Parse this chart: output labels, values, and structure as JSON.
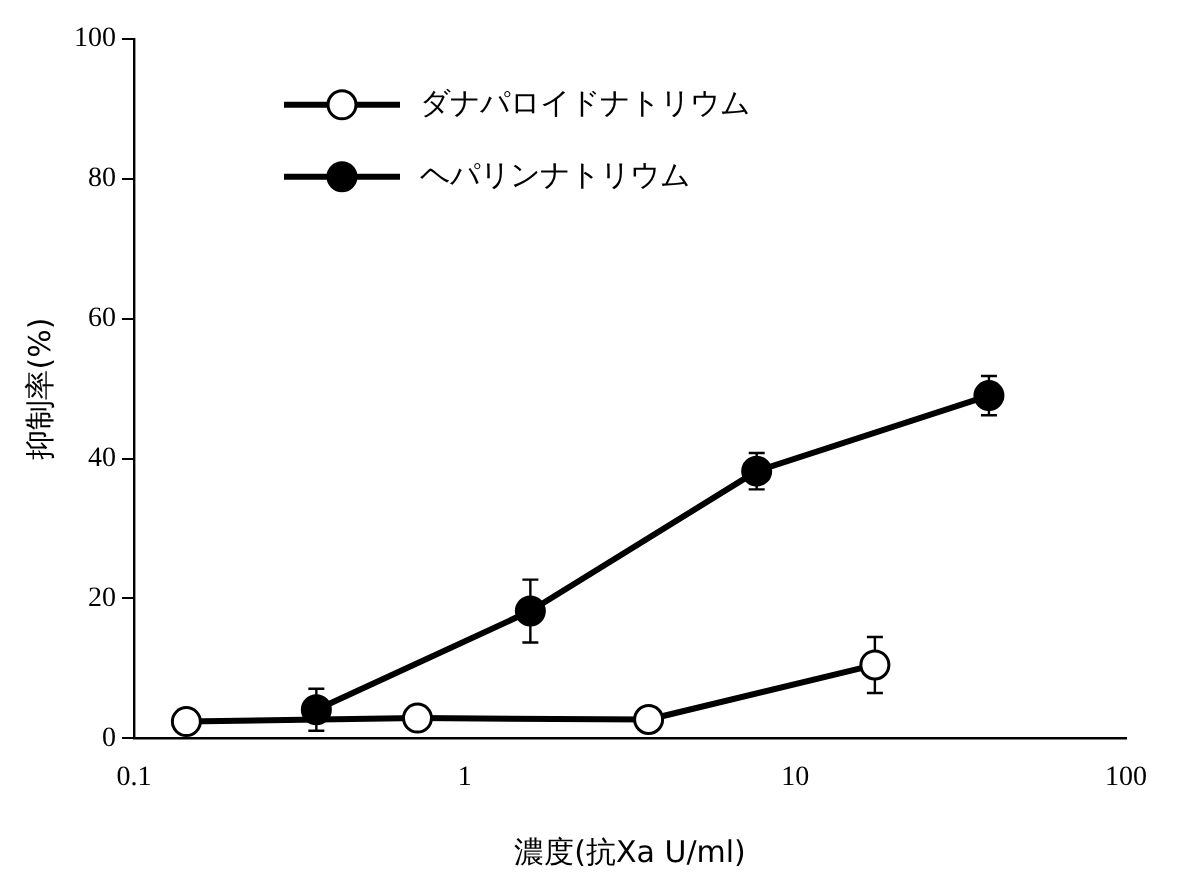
{
  "chart_data": {
    "type": "line",
    "xlabel": "濃度(抗Xa U/ml)",
    "ylabel": "抑制率(%)",
    "log": "x",
    "xlim": [
      0.1,
      100
    ],
    "xticks": [
      0.1,
      1,
      10,
      100
    ],
    "ylim": [
      0,
      100
    ],
    "yticks": [
      0,
      20,
      40,
      60,
      80,
      100
    ],
    "grid": false,
    "legend": "top left",
    "series": [
      {
        "name": "ダナパロイドナトリウム",
        "color": "#000000",
        "marker": "circle",
        "x": [
          0.144,
          0.72,
          3.6,
          17.4
        ],
        "values": [
          2.4,
          2.9,
          2.7,
          10.5
        ],
        "errors": [
          null,
          null,
          null,
          4
        ]
      },
      {
        "name": "ヘパリンナトリウム",
        "color": "#000000",
        "marker": "circle",
        "x": [
          0.356,
          1.58,
          7.64,
          38.5
        ],
        "values": [
          4.1,
          18.2,
          38.2,
          49
        ],
        "errors": [
          3,
          4.5,
          2.6,
          2.8
        ]
      }
    ]
  }
}
